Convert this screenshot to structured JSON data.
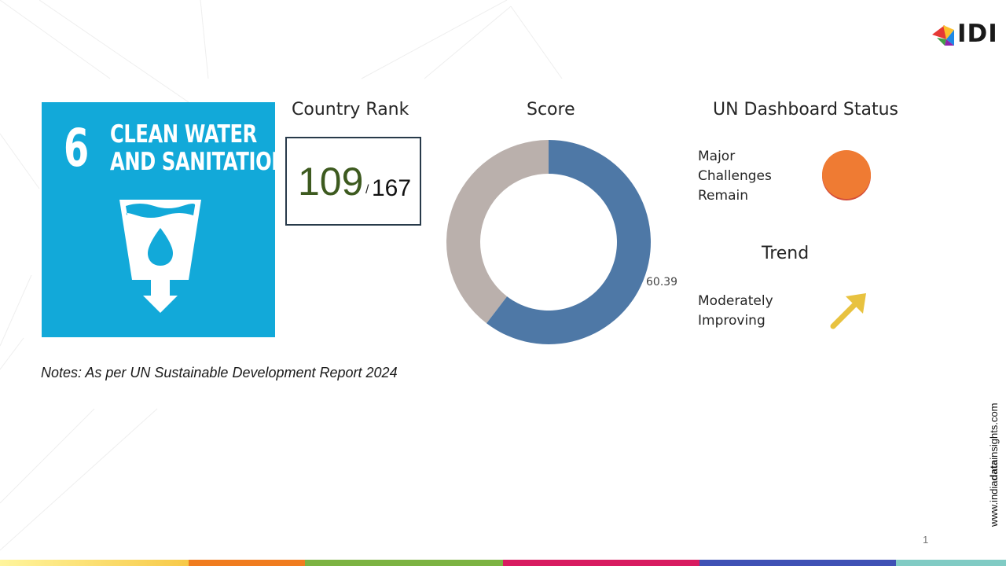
{
  "brand": {
    "logo_text": "IDI",
    "website_prefix": "www.india",
    "website_bold": "data",
    "website_suffix": "insights.com"
  },
  "sdg": {
    "number": "6",
    "title_line1": "CLEAN WATER",
    "title_line2": "AND SANITATION",
    "tile_color": "#12a9d9"
  },
  "country_rank": {
    "heading": "Country Rank",
    "rank": "109",
    "separator": "/",
    "total": "167"
  },
  "score": {
    "heading": "Score",
    "value": "60.39",
    "value_number": 60.39,
    "max": 100,
    "colors": {
      "score": "#4e78a6",
      "remainder": "#bab0ac"
    }
  },
  "un_dashboard": {
    "heading": "UN Dashboard Status",
    "status_lines": [
      "Major",
      "Challenges",
      "Remain"
    ],
    "status_color": "#ef7b33",
    "trend_heading": "Trend",
    "trend_lines": [
      "Moderately",
      "Improving"
    ],
    "trend_icon": "arrow-up-right-icon",
    "trend_color": "#e8c23f"
  },
  "notes": "Notes: As per UN Sustainable Development Report 2024",
  "page_number": "1",
  "footer_colors": [
    "#f5a623",
    "#f07c1f",
    "#7cb342",
    "#d81b60",
    "#3f51b5",
    "#80cbc4"
  ]
}
